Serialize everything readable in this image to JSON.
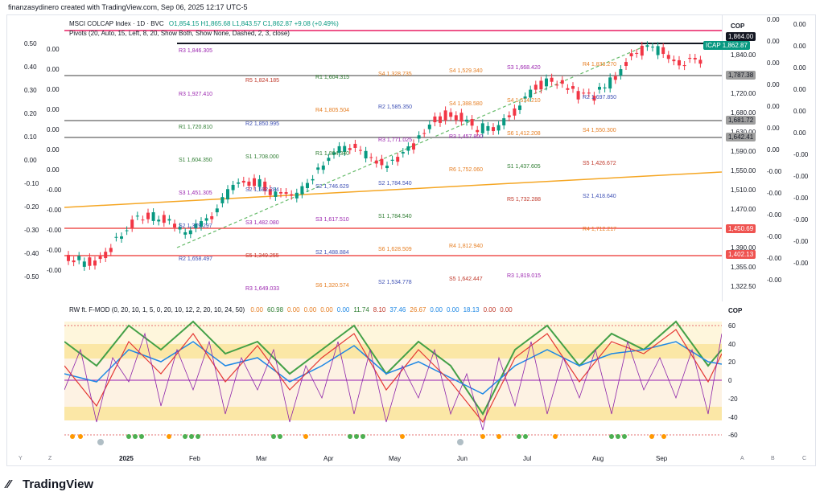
{
  "header": {
    "text": "finanzasydinero created with TradingView.com, Sep 06, 2025 12:17 UTC-5"
  },
  "main_legend": {
    "symbol": "MSCI COLCAP Index · 1D · BVC",
    "ohlc": "O1,854.15 H1,865.68 L1,843.57 C1,862.87 +9.08 (+0.49%)",
    "pivots": "Pivots (20, Auto, 15, Left, 8, 20, Show Both, Show None, Dashed, 2, 3, close)"
  },
  "currency": "COP",
  "symbol_tag": {
    "name": "ICAP",
    "value": "1,862.87"
  },
  "price_axis": {
    "labels": [
      "1,840.00",
      "1,760.00",
      "1,720.00",
      "1,680.00",
      "1,630.00",
      "1,590.00",
      "1,550.00",
      "1,510.00",
      "1,470.00",
      "1,430.00",
      "1,390.00",
      "1,355.00",
      "1,322.50"
    ],
    "tags": [
      {
        "text": "1,864.00",
        "kind": "black"
      },
      {
        "text": "1,787.38",
        "kind": "gray"
      },
      {
        "text": "1,681.72",
        "kind": "gray"
      },
      {
        "text": "1,642.41",
        "kind": "gray"
      },
      {
        "text": "1,450.69",
        "kind": "red"
      },
      {
        "text": "1,402.13",
        "kind": "red"
      }
    ],
    "right_col_a": [
      "0.00",
      "0.00",
      "0.00",
      "0.00",
      "0.00",
      "0.00",
      "0.00",
      "-0.00",
      "-0.00",
      "-0.00",
      "-0.00",
      "-0.00",
      "-0.00"
    ],
    "right_col_b": [
      "0.00",
      "0.00",
      "0.00",
      "0.00",
      "0.00",
      "0.00",
      "-0.00",
      "-0.00",
      "-0.00",
      "-0.00",
      "-0.00",
      "-0.00"
    ]
  },
  "left_scale_a": [
    "0.50",
    "0.40",
    "0.30",
    "0.20",
    "0.10",
    "0.00",
    "-0.10",
    "-0.20",
    "-0.30",
    "-0.40",
    "-0.50"
  ],
  "left_scale_b": [
    "0.00",
    "0.00",
    "0.00",
    "0.00",
    "0.00",
    "0.00",
    "0.00",
    "-0.00",
    "-0.00",
    "-0.00",
    "-0.00",
    "-0.00"
  ],
  "pivots": [
    {
      "label": "R3",
      "value": "1,846.305",
      "color": "#9c27b0"
    },
    {
      "label": "R5",
      "value": "1,824.185",
      "color": "#c0392b"
    },
    {
      "label": "R4",
      "value": "1,805.504",
      "color": "#e67e22"
    },
    {
      "label": "R3",
      "value": "1,771.025",
      "color": "#9c27b0"
    },
    {
      "label": "R6",
      "value": "1,752.060",
      "color": "#e67e22"
    },
    {
      "label": "R5",
      "value": "1,732.288",
      "color": "#c0392b"
    },
    {
      "label": "R4",
      "value": "1,712.217",
      "color": "#e67e22"
    },
    {
      "label": "R2",
      "value": "1,658.497",
      "color": "#3f51b5"
    },
    {
      "label": "R3",
      "value": "1,649.033",
      "color": "#9c27b0"
    },
    {
      "label": "R1",
      "value": "1,604.315",
      "color": "#2e7d32"
    },
    {
      "label": "R2",
      "value": "1,585.350",
      "color": "#3f51b5"
    },
    {
      "label": "R3",
      "value": "1,457.800",
      "color": "#9c27b0"
    },
    {
      "label": "S1",
      "value": "1,437.605",
      "color": "#2e7d32"
    },
    {
      "label": "S2",
      "value": "1,418.640",
      "color": "#3f51b5"
    },
    {
      "label": "S2",
      "value": "1,379.297",
      "color": "#3f51b5"
    },
    {
      "label": "S5",
      "value": "1,349.255",
      "color": "#c0392b"
    },
    {
      "label": "S6",
      "value": "1,320.574",
      "color": "#e67e22"
    },
    {
      "label": "S4",
      "value": "1,328.735",
      "color": "#e67e22"
    },
    {
      "label": "S4",
      "value": "1,388.580",
      "color": "#e67e22"
    },
    {
      "label": "S6",
      "value": "1,412.208",
      "color": "#e67e22"
    },
    {
      "label": "S5",
      "value": "1,426.672",
      "color": "#c0392b"
    },
    {
      "label": "S3",
      "value": "1,451.305",
      "color": "#9c27b0"
    },
    {
      "label": "S3",
      "value": "1,482.080",
      "color": "#9c27b0"
    },
    {
      "label": "S2",
      "value": "1,488.884",
      "color": "#3f51b5"
    },
    {
      "label": "S2",
      "value": "1,534.778",
      "color": "#3f51b5"
    },
    {
      "label": "S4",
      "value": "1,529.340",
      "color": "#e67e22"
    },
    {
      "label": "S4",
      "value": "1,514.210",
      "color": "#e67e22"
    },
    {
      "label": "S4",
      "value": "1,550.300",
      "color": "#e67e22"
    },
    {
      "label": "S1",
      "value": "1,604.350",
      "color": "#2e7d32"
    },
    {
      "label": "S2",
      "value": "1,582.284",
      "color": "#3f51b5"
    },
    {
      "label": "S3",
      "value": "1,617.510",
      "color": "#9c27b0"
    },
    {
      "label": "S6",
      "value": "1,628.509",
      "color": "#e67e22"
    },
    {
      "label": "S5",
      "value": "1,642.447",
      "color": "#c0392b"
    },
    {
      "label": "S3",
      "value": "1,668.420",
      "color": "#9c27b0"
    },
    {
      "label": "R2",
      "value": "1,697.850",
      "color": "#3f51b5"
    },
    {
      "label": "R1",
      "value": "1,720.810",
      "color": "#2e7d32"
    },
    {
      "label": "S1",
      "value": "1,708.000",
      "color": "#2e7d32"
    },
    {
      "label": "S2",
      "value": "1,746.629",
      "color": "#3f51b5"
    },
    {
      "label": "S1",
      "value": "1,784.540",
      "color": "#2e7d32"
    },
    {
      "label": "R4",
      "value": "1,812.940",
      "color": "#e67e22"
    },
    {
      "label": "R3",
      "value": "1,819.015",
      "color": "#9c27b0"
    },
    {
      "label": "R4",
      "value": "1,833.270",
      "color": "#e67e22"
    },
    {
      "label": "R3",
      "value": "1,927.410",
      "color": "#9c27b0"
    },
    {
      "label": "R2",
      "value": "1,850.995",
      "color": "#3f51b5"
    },
    {
      "label": "R1",
      "value": "1,864.340",
      "color": "#2e7d32"
    },
    {
      "label": "S2",
      "value": "1,784.540",
      "color": "#3f51b5"
    }
  ],
  "oscillator": {
    "name": "RW ft. F-MOD (0, 20, 10, 1, 5, 0, 20, 10, 12, 2, 20, 10, 24, 50)",
    "values": [
      {
        "text": "0.00",
        "color": "#e67e22"
      },
      {
        "text": "60.98",
        "color": "#2e7d32"
      },
      {
        "text": "0.00",
        "color": "#e67e22"
      },
      {
        "text": "0.00",
        "color": "#e67e22"
      },
      {
        "text": "0.00",
        "color": "#e67e22"
      },
      {
        "text": "0.00",
        "color": "#1e88e5"
      },
      {
        "text": "11.74",
        "color": "#2e7d32"
      },
      {
        "text": "8.10",
        "color": "#c0392b"
      },
      {
        "text": "37.46",
        "color": "#1e88e5"
      },
      {
        "text": "26.67",
        "color": "#e67e22"
      },
      {
        "text": "0.00",
        "color": "#1e88e5"
      },
      {
        "text": "0.00",
        "color": "#1e88e5"
      },
      {
        "text": "18.13",
        "color": "#1e88e5"
      },
      {
        "text": "0.00",
        "color": "#c0392b"
      },
      {
        "text": "0.00",
        "color": "#c0392b"
      }
    ],
    "axis": [
      "60",
      "40",
      "20",
      "0",
      "-20",
      "-40",
      "-60"
    ],
    "currency": "COP"
  },
  "dates": [
    "2025",
    "Feb",
    "Mar",
    "Apr",
    "May",
    "Jun",
    "Jul",
    "Aug",
    "Sep"
  ],
  "corner_letters": [
    "Y",
    "Z",
    "A",
    "B",
    "C"
  ],
  "footer": {
    "logo": "TradingView"
  }
}
